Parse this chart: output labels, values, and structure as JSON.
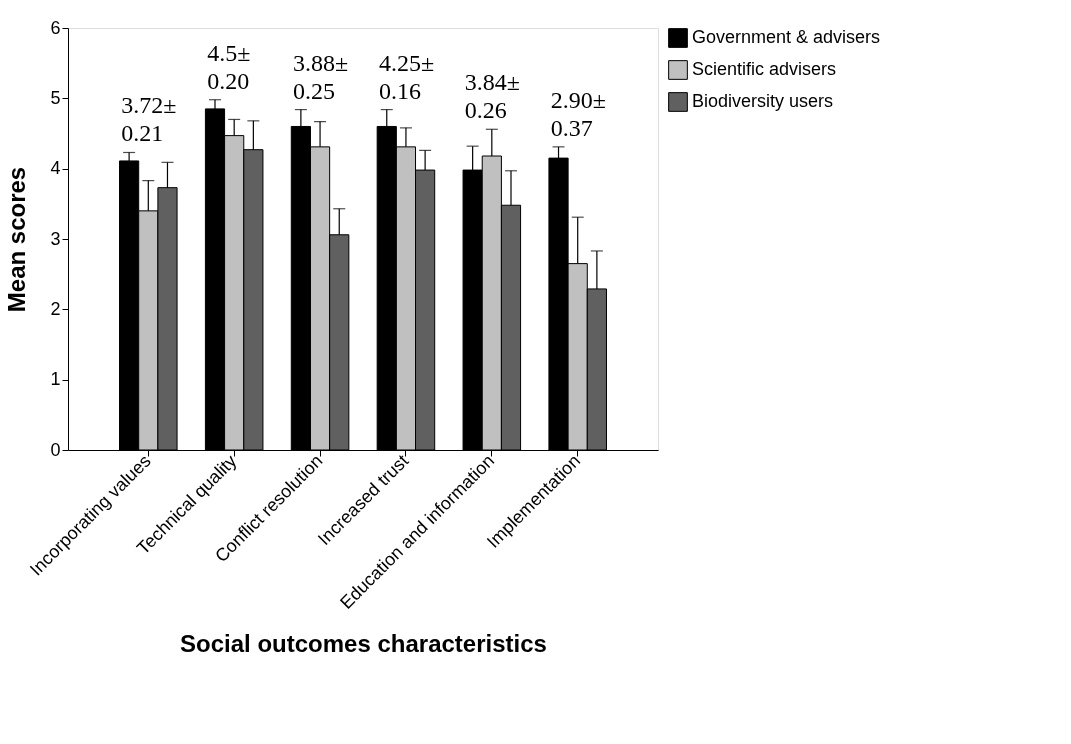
{
  "chart_data": {
    "type": "bar",
    "xlabel": "Social outcomes characteristics",
    "ylabel": "Mean scores",
    "categories": [
      "Incorporating values",
      "Technical quality",
      "Conflict resolution",
      "Increased trust",
      "Education and information",
      "Implementation"
    ],
    "series": [
      {
        "name": "Government & advisers",
        "color": "#000000",
        "values": [
          4.11,
          4.85,
          4.6,
          4.6,
          3.98,
          4.15
        ],
        "errors": [
          [
            4.11,
            4.23
          ],
          [
            4.85,
            4.98
          ],
          [
            4.6,
            4.84
          ],
          [
            4.6,
            4.84
          ],
          [
            3.98,
            4.32
          ],
          [
            4.15,
            4.31
          ]
        ]
      },
      {
        "name": "Scientific advisers",
        "color": "#c0c0c0",
        "values": [
          3.4,
          4.47,
          4.31,
          4.31,
          4.18,
          2.65
        ],
        "errors": [
          [
            3.4,
            3.83
          ],
          [
            4.47,
            4.7
          ],
          [
            4.31,
            4.67
          ],
          [
            4.31,
            4.58
          ],
          [
            4.18,
            4.56
          ],
          [
            2.65,
            3.31
          ]
        ]
      },
      {
        "name": "Biodiversity users",
        "color": "#606060",
        "values": [
          3.73,
          4.27,
          3.06,
          3.98,
          3.48,
          2.29
        ],
        "errors": [
          [
            3.73,
            4.09
          ],
          [
            4.27,
            4.68
          ],
          [
            3.06,
            3.43
          ],
          [
            3.98,
            4.26
          ],
          [
            3.48,
            3.97
          ],
          [
            2.29,
            2.83
          ]
        ]
      }
    ],
    "ylim": [
      0,
      6
    ],
    "yticks": [
      0,
      1,
      2,
      3,
      4,
      5,
      6
    ],
    "grid": false,
    "legend": "top right",
    "annotations": [
      "3.72±\n0.21",
      "4.5±\n0.20",
      "3.88±\n0.25",
      "4.25±\n0.16",
      "3.84±\n0.26",
      "2.90±\n0.37"
    ]
  }
}
